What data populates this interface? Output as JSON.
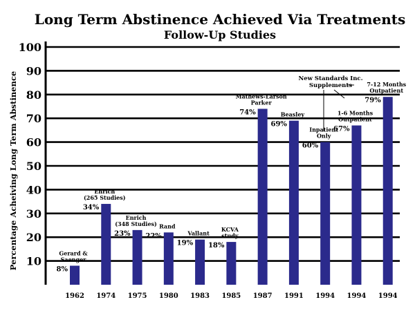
{
  "chart_data": {
    "type": "bar",
    "title": "Long Term Abstinence Achieved Via Treatments",
    "subtitle": "Follow-Up Studies",
    "xlabel": "",
    "ylabel": "Percentage Acheiving Long Term Abstinence",
    "ylim": [
      0,
      100
    ],
    "yticks": [
      10,
      20,
      30,
      40,
      50,
      60,
      70,
      80,
      90,
      100
    ],
    "grid": true,
    "categories": [
      "1962",
      "1974",
      "1975",
      "1980",
      "1983",
      "1985",
      "1987",
      "1991",
      "1994",
      "1994",
      "1994"
    ],
    "values": [
      8,
      34,
      23,
      22,
      19,
      18,
      74,
      69,
      60,
      67,
      79
    ],
    "value_labels": [
      "8%",
      "34%",
      "23%",
      "22%",
      "19%",
      "18%",
      "74%",
      "69%",
      "60%",
      "67%",
      "79%"
    ],
    "bar_labels": [
      [
        "Gerard &",
        "Saenger"
      ],
      [
        "Enrich",
        "(265 Studies)"
      ],
      [
        "Enrich",
        "(348 Studies)"
      ],
      [
        "Rand"
      ],
      [
        "Vallant"
      ],
      [
        "KCVA",
        "study"
      ],
      [
        "Mathews-Larson",
        "Parker"
      ],
      [
        "Beasley"
      ],
      [
        "Inpatient",
        "Only"
      ],
      [
        "1-6 Months",
        "Outpatient"
      ],
      [
        "7-12 Months",
        "Outpatient"
      ]
    ],
    "annotation": [
      "New Standards Inc.",
      "Supplements"
    ],
    "bar_color": "#2b2a8c"
  }
}
